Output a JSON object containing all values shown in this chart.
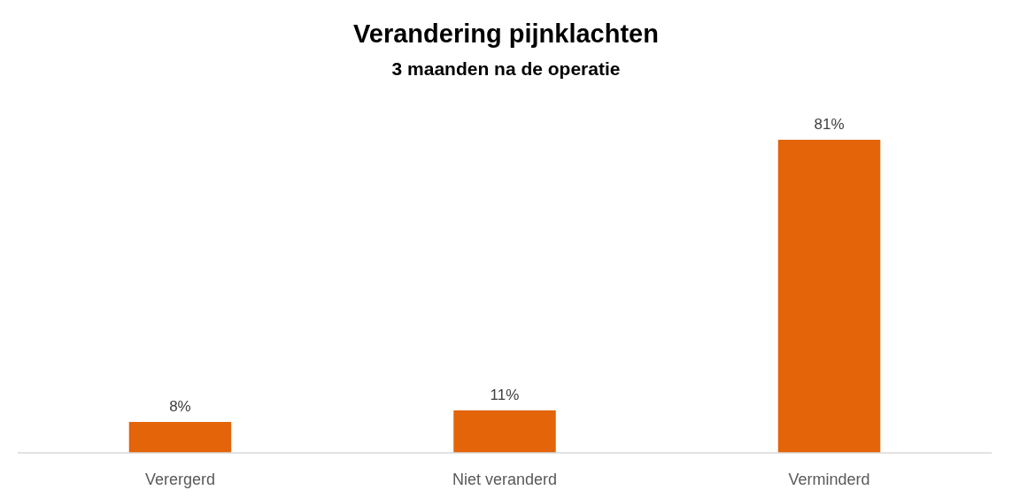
{
  "chart_data": {
    "type": "bar",
    "title": "Verandering pijnklachten",
    "subtitle": "3 maanden na de operatie",
    "categories": [
      "Verergerd",
      "Niet veranderd",
      "Verminderd"
    ],
    "values": [
      8,
      11,
      81
    ],
    "value_labels": [
      "8%",
      "11%",
      "81%"
    ],
    "color": "#e36409"
  }
}
